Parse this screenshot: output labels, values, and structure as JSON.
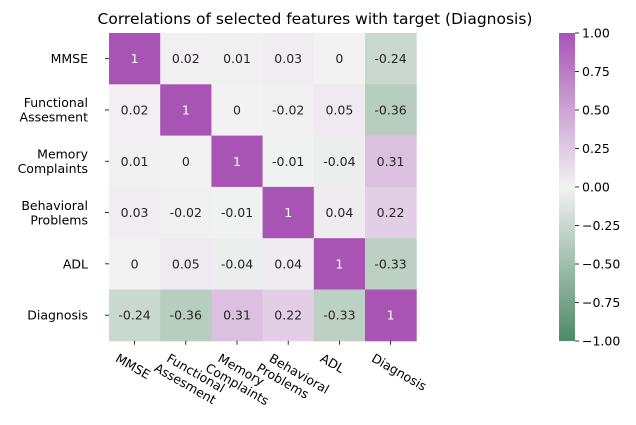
{
  "chart_data": {
    "type": "heatmap",
    "title": "Correlations of selected features with target (Diagnosis)",
    "row_labels": [
      [
        "MMSE"
      ],
      [
        "Functional",
        "Assesment"
      ],
      [
        "Memory",
        "Complaints"
      ],
      [
        "Behavioral",
        "Problems"
      ],
      [
        "ADL"
      ],
      [
        "Diagnosis"
      ]
    ],
    "col_labels": [
      [
        "MMSE"
      ],
      [
        "Functional",
        "Assesment"
      ],
      [
        "Memory",
        "Complaints"
      ],
      [
        "Behavioral",
        "Problems"
      ],
      [
        "ADL"
      ],
      [
        "Diagnosis"
      ]
    ],
    "values": [
      [
        1,
        0.02,
        0.01,
        0.03,
        0,
        -0.24
      ],
      [
        0.02,
        1,
        0,
        -0.02,
        0.05,
        -0.36
      ],
      [
        0.01,
        0,
        1,
        -0.01,
        -0.04,
        0.31
      ],
      [
        0.03,
        -0.02,
        -0.01,
        1,
        0.04,
        0.22
      ],
      [
        0,
        0.05,
        -0.04,
        0.04,
        1,
        -0.33
      ],
      [
        -0.24,
        -0.36,
        0.31,
        0.22,
        -0.33,
        1
      ]
    ],
    "vmin": -1,
    "vmax": 1,
    "colorbar_ticks": [
      1.0,
      0.75,
      0.5,
      0.25,
      0.0,
      -0.25,
      -0.5,
      -0.75,
      -1.0
    ],
    "colorbar_tick_labels": [
      "1.00",
      "0.75",
      "0.50",
      "0.25",
      "0.00",
      "−0.25",
      "−0.50",
      "−0.75",
      "−1.00"
    ],
    "colormap": {
      "low": "#4d8a66",
      "mid": "#f2f2f2",
      "high": "#a854b5"
    }
  }
}
